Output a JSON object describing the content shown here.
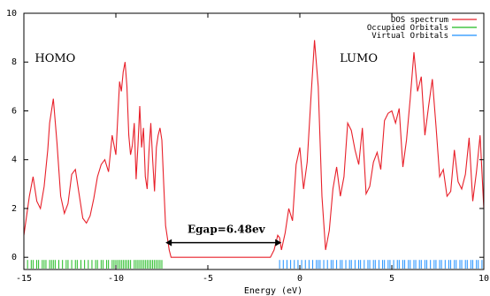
{
  "chart_data": {
    "type": "line",
    "xlabel": "Energy (eV)",
    "ylabel": "",
    "xlim": [
      -15,
      10
    ],
    "ylim": [
      -0.5,
      10
    ],
    "xticks": [
      -15,
      -10,
      -5,
      0,
      5,
      10
    ],
    "yticks": [
      0,
      2,
      4,
      6,
      8,
      10
    ],
    "legend_position": "top-right",
    "colors": {
      "dos": "#e8202a",
      "occupied": "#22bb22",
      "virtual": "#1e90ff",
      "axis": "#000000"
    },
    "legend": [
      {
        "label": "DOS spectrum",
        "color_key": "dos"
      },
      {
        "label": "Occupied Orbitals",
        "color_key": "occupied"
      },
      {
        "label": "Virtual Orbitals",
        "color_key": "virtual"
      }
    ],
    "series": [
      {
        "name": "DOS spectrum",
        "x": [
          -15.0,
          -14.7,
          -14.5,
          -14.3,
          -14.1,
          -13.9,
          -13.7,
          -13.6,
          -13.4,
          -13.2,
          -13.0,
          -12.8,
          -12.6,
          -12.4,
          -12.2,
          -12.0,
          -11.8,
          -11.6,
          -11.4,
          -11.2,
          -11.0,
          -10.8,
          -10.6,
          -10.4,
          -10.2,
          -10.0,
          -9.9,
          -9.8,
          -9.7,
          -9.6,
          -9.5,
          -9.4,
          -9.3,
          -9.2,
          -9.1,
          -9.0,
          -8.9,
          -8.8,
          -8.7,
          -8.6,
          -8.5,
          -8.4,
          -8.3,
          -8.2,
          -8.1,
          -8.0,
          -7.9,
          -7.8,
          -7.7,
          -7.6,
          -7.5,
          -7.4,
          -7.3,
          -7.1,
          -7.0,
          -6.0,
          -5.0,
          -4.0,
          -3.0,
          -2.0,
          -1.6,
          -1.4,
          -1.2,
          -1.1,
          -1.0,
          -0.8,
          -0.6,
          -0.4,
          -0.2,
          0.0,
          0.2,
          0.4,
          0.6,
          0.8,
          1.0,
          1.2,
          1.4,
          1.6,
          1.8,
          2.0,
          2.2,
          2.4,
          2.6,
          2.8,
          3.0,
          3.2,
          3.4,
          3.6,
          3.8,
          4.0,
          4.2,
          4.4,
          4.6,
          4.8,
          5.0,
          5.2,
          5.4,
          5.6,
          5.8,
          6.0,
          6.2,
          6.4,
          6.6,
          6.8,
          7.0,
          7.2,
          7.4,
          7.6,
          7.8,
          8.0,
          8.2,
          8.4,
          8.6,
          8.8,
          9.0,
          9.2,
          9.4,
          9.6,
          9.8,
          10.0
        ],
        "y": [
          0.9,
          2.5,
          3.3,
          2.3,
          2.0,
          2.9,
          4.4,
          5.5,
          6.5,
          4.7,
          2.5,
          1.8,
          2.2,
          3.4,
          3.6,
          2.6,
          1.6,
          1.4,
          1.7,
          2.4,
          3.3,
          3.8,
          4.0,
          3.5,
          5.0,
          4.2,
          5.7,
          7.2,
          6.8,
          7.6,
          8.0,
          7.0,
          5.0,
          4.2,
          4.6,
          5.5,
          3.2,
          4.6,
          6.2,
          4.5,
          5.3,
          3.3,
          2.8,
          4.3,
          5.5,
          4.0,
          2.7,
          4.5,
          5.0,
          5.3,
          4.8,
          3.0,
          1.3,
          0.3,
          0.0,
          0.0,
          0.0,
          0.0,
          0.0,
          0.0,
          0.0,
          0.3,
          0.9,
          0.8,
          0.3,
          1.0,
          2.0,
          1.5,
          3.8,
          4.5,
          2.8,
          3.9,
          6.5,
          8.9,
          7.0,
          2.5,
          0.3,
          1.1,
          2.8,
          3.7,
          2.5,
          3.3,
          5.5,
          5.2,
          4.4,
          3.8,
          5.3,
          2.6,
          2.9,
          3.9,
          4.3,
          3.6,
          5.6,
          5.9,
          6.0,
          5.5,
          6.1,
          3.7,
          4.8,
          6.5,
          8.4,
          6.8,
          7.4,
          5.0,
          6.2,
          7.3,
          5.4,
          3.3,
          3.6,
          2.5,
          2.7,
          4.4,
          3.1,
          2.8,
          3.4,
          4.9,
          2.3,
          3.5,
          5.0,
          2.0
        ]
      },
      {
        "name": "Occupied Orbitals",
        "x": [
          -14.8,
          -14.6,
          -14.5,
          -14.3,
          -14.2,
          -14.0,
          -13.9,
          -13.8,
          -13.6,
          -13.5,
          -13.4,
          -13.3,
          -13.1,
          -12.9,
          -12.7,
          -12.6,
          -12.4,
          -12.2,
          -12.1,
          -11.9,
          -11.7,
          -11.5,
          -11.3,
          -11.1,
          -11.0,
          -10.8,
          -10.7,
          -10.5,
          -10.4,
          -10.2,
          -10.1,
          -10.0,
          -9.9,
          -9.8,
          -9.7,
          -9.6,
          -9.5,
          -9.4,
          -9.3,
          -9.2,
          -9.0,
          -8.9,
          -8.8,
          -8.7,
          -8.6,
          -8.5,
          -8.4,
          -8.3,
          -8.2,
          -8.1,
          -8.0,
          -7.9,
          -7.8,
          -7.7,
          -7.6,
          -7.5
        ],
        "y_range": [
          -1.0,
          0.0
        ]
      },
      {
        "name": "Virtual Orbitals",
        "x": [
          -1.1,
          -0.9,
          -0.7,
          -0.5,
          -0.3,
          -0.1,
          0.1,
          0.3,
          0.5,
          0.7,
          0.9,
          1.0,
          1.1,
          1.3,
          1.5,
          1.7,
          1.8,
          2.0,
          2.2,
          2.3,
          2.5,
          2.7,
          2.8,
          3.0,
          3.2,
          3.3,
          3.5,
          3.7,
          3.8,
          4.0,
          4.1,
          4.3,
          4.5,
          4.6,
          4.8,
          4.9,
          5.1,
          5.3,
          5.4,
          5.6,
          5.7,
          5.9,
          6.0,
          6.2,
          6.3,
          6.5,
          6.6,
          6.8,
          6.9,
          7.1,
          7.3,
          7.4,
          7.6,
          7.7,
          7.9,
          8.1,
          8.2,
          8.4,
          8.5,
          8.7,
          8.8,
          9.0,
          9.1,
          9.3,
          9.4,
          9.6,
          9.7,
          9.9
        ],
        "y_range": [
          -1.0,
          0.0
        ]
      }
    ],
    "annotations": [
      {
        "text": "HOMO",
        "x": -13.3,
        "y": 8.0,
        "style": "label"
      },
      {
        "text": "LUMO",
        "x": 3.2,
        "y": 8.0,
        "style": "label"
      },
      {
        "text": "Egap=6.48ev",
        "x": -4.0,
        "y": 1.0,
        "style": "bold",
        "arrow_from": -7.3,
        "arrow_to": -1.0,
        "arrow_y": 0.6
      }
    ]
  }
}
